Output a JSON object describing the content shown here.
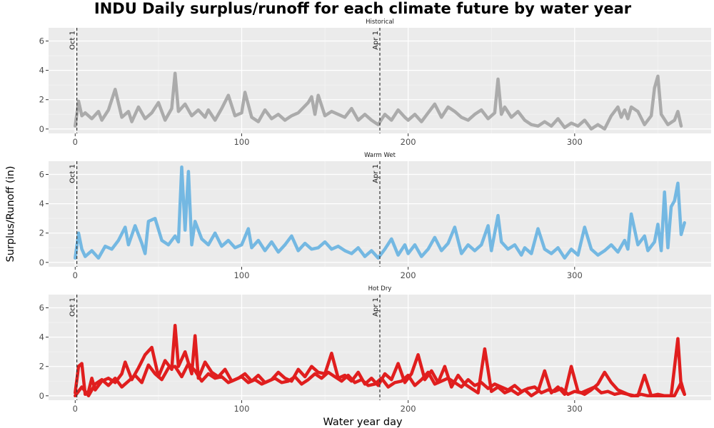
{
  "chart_data": {
    "type": "line",
    "title": "INDU Daily surplus/runoff for each climate future by water year",
    "xlabel": "Water year day",
    "ylabel": "Surplus/Runoff (in)",
    "xlim": [
      -16,
      382
    ],
    "ylim": [
      -0.3,
      6.9
    ],
    "x_ticks": [
      0,
      100,
      200,
      300
    ],
    "y_ticks": [
      0,
      2,
      4,
      6
    ],
    "grid": true,
    "legend": "none",
    "reference_lines": [
      {
        "x": 1,
        "label": "Oct 1"
      },
      {
        "x": 183,
        "label": "Apr 1"
      }
    ],
    "panels": [
      {
        "name": "Historical",
        "color": "#ABABAB",
        "series": [
          {
            "x": [
              0,
              2,
              4,
              6,
              10,
              14,
              16,
              20,
              24,
              28,
              32,
              34,
              38,
              42,
              46,
              50,
              54,
              58,
              60,
              62,
              66,
              70,
              74,
              78,
              80,
              84,
              88,
              92,
              96,
              100,
              102,
              106,
              110,
              114,
              118,
              122,
              126,
              130,
              134,
              140,
              142,
              144,
              146,
              150,
              154,
              158,
              162,
              166,
              170,
              174,
              178,
              182,
              186,
              190,
              194,
              198,
              200,
              204,
              208,
              212,
              216,
              220,
              224,
              228,
              232,
              236,
              240,
              244,
              248,
              252,
              254,
              256,
              258,
              262,
              266,
              270,
              274,
              278,
              282,
              286,
              290,
              294,
              298,
              302,
              306,
              310,
              314,
              318,
              322,
              326,
              328,
              330,
              332,
              334,
              338,
              342,
              346,
              348,
              350,
              352,
              356,
              360,
              362,
              364
            ],
            "y": [
              0.2,
              1.9,
              0.9,
              1.1,
              0.7,
              1.2,
              0.6,
              1.3,
              2.7,
              0.8,
              1.2,
              0.5,
              1.5,
              0.7,
              1.1,
              1.8,
              0.6,
              1.4,
              3.8,
              1.2,
              1.7,
              0.9,
              1.3,
              0.8,
              1.3,
              0.6,
              1.4,
              2.3,
              0.9,
              1.1,
              2.5,
              0.8,
              0.5,
              1.3,
              0.7,
              1.0,
              0.6,
              0.9,
              1.1,
              1.8,
              2.2,
              1.0,
              2.3,
              0.9,
              1.2,
              1.0,
              0.8,
              1.4,
              0.6,
              1.0,
              0.6,
              0.3,
              1.0,
              0.6,
              1.3,
              0.8,
              0.6,
              1.0,
              0.5,
              1.1,
              1.7,
              0.8,
              1.5,
              1.2,
              0.8,
              0.6,
              1.0,
              1.3,
              0.7,
              1.1,
              3.4,
              1.0,
              1.5,
              0.8,
              1.2,
              0.6,
              0.3,
              0.2,
              0.5,
              0.2,
              0.7,
              0.1,
              0.4,
              0.2,
              0.6,
              0.0,
              0.3,
              0.0,
              0.9,
              1.5,
              0.8,
              1.3,
              0.7,
              1.5,
              1.2,
              0.3,
              0.9,
              2.8,
              3.6,
              1.0,
              0.3,
              0.6,
              1.2,
              0.2
            ]
          }
        ]
      },
      {
        "name": "Warm Wet",
        "color": "#74B8E2",
        "series": [
          {
            "x": [
              0,
              2,
              4,
              6,
              10,
              14,
              18,
              22,
              26,
              30,
              32,
              36,
              40,
              42,
              44,
              48,
              52,
              56,
              60,
              62,
              64,
              66,
              68,
              70,
              72,
              76,
              80,
              84,
              88,
              92,
              96,
              100,
              104,
              106,
              110,
              114,
              118,
              122,
              126,
              130,
              134,
              138,
              142,
              146,
              150,
              154,
              158,
              162,
              166,
              170,
              174,
              178,
              182,
              186,
              190,
              194,
              198,
              200,
              204,
              208,
              212,
              216,
              220,
              224,
              228,
              232,
              236,
              240,
              244,
              248,
              250,
              254,
              256,
              260,
              264,
              268,
              270,
              274,
              278,
              282,
              286,
              290,
              294,
              298,
              302,
              306,
              310,
              314,
              318,
              322,
              326,
              330,
              332,
              334,
              338,
              342,
              344,
              348,
              350,
              352,
              354,
              356,
              358,
              360,
              362,
              364,
              366
            ],
            "y": [
              0.3,
              2.0,
              0.9,
              0.4,
              0.8,
              0.3,
              1.1,
              0.9,
              1.5,
              2.4,
              1.2,
              2.5,
              1.3,
              0.6,
              2.8,
              3.0,
              1.5,
              1.2,
              1.8,
              1.4,
              6.5,
              2.2,
              6.2,
              1.2,
              2.8,
              1.6,
              1.2,
              2.0,
              1.1,
              1.5,
              1.0,
              1.2,
              2.3,
              1.0,
              1.5,
              0.8,
              1.4,
              0.7,
              1.2,
              1.8,
              0.8,
              1.3,
              0.9,
              1.0,
              1.4,
              0.9,
              1.1,
              0.8,
              0.6,
              1.0,
              0.4,
              0.8,
              0.3,
              0.9,
              1.6,
              0.5,
              1.2,
              0.6,
              1.2,
              0.4,
              0.9,
              1.7,
              0.8,
              1.3,
              2.4,
              0.6,
              1.2,
              0.8,
              1.2,
              2.5,
              0.8,
              3.2,
              1.4,
              0.9,
              1.2,
              0.5,
              1.0,
              0.6,
              2.3,
              0.9,
              0.6,
              1.0,
              0.3,
              0.9,
              0.5,
              2.4,
              0.9,
              0.5,
              0.8,
              1.2,
              0.7,
              1.5,
              0.9,
              3.3,
              1.2,
              1.8,
              0.8,
              1.4,
              2.6,
              0.8,
              4.8,
              1.0,
              3.8,
              4.2,
              5.4,
              1.9,
              2.7
            ]
          }
        ]
      },
      {
        "name": "Hot Dry",
        "color": "#E01E1E",
        "series": [
          {
            "x": [
              0,
              2,
              4,
              6,
              8,
              10,
              12,
              16,
              20,
              24,
              28,
              30,
              34,
              38,
              42,
              46,
              50,
              54,
              58,
              60,
              62,
              66,
              70,
              72,
              74,
              78,
              82,
              86,
              90,
              94,
              98,
              102,
              106,
              110,
              114,
              118,
              122,
              126,
              130,
              134,
              138,
              142,
              146,
              150,
              154,
              158,
              162,
              166,
              170,
              174,
              178,
              182,
              186,
              190,
              194,
              198,
              202,
              206,
              210,
              214,
              218,
              222,
              226,
              230,
              234,
              238,
              242,
              246,
              250,
              254,
              258,
              262,
              266,
              270,
              274,
              278,
              282,
              286,
              290,
              294,
              298,
              302,
              306,
              310,
              314,
              318,
              322,
              326,
              330,
              334,
              338,
              342,
              346,
              350,
              354,
              358,
              362,
              364,
              366
            ],
            "y": [
              0.2,
              2.0,
              2.2,
              0.1,
              0.3,
              1.2,
              0.4,
              1.0,
              1.2,
              0.9,
              1.5,
              2.3,
              1.1,
              1.9,
              2.8,
              3.3,
              1.3,
              2.4,
              1.8,
              4.8,
              2.0,
              3.0,
              1.5,
              4.1,
              1.2,
              2.3,
              1.6,
              1.3,
              1.8,
              1.0,
              1.2,
              1.5,
              1.0,
              1.4,
              0.9,
              1.1,
              1.6,
              1.2,
              1.0,
              1.8,
              1.3,
              2.0,
              1.6,
              1.5,
              2.9,
              1.2,
              1.4,
              1.0,
              1.6,
              0.8,
              1.2,
              0.7,
              1.5,
              1.1,
              2.2,
              0.9,
              1.5,
              2.8,
              1.1,
              1.7,
              0.9,
              2.0,
              0.6,
              1.4,
              0.8,
              0.5,
              0.2,
              3.2,
              0.3,
              0.6,
              0.2,
              0.4,
              0.1,
              0.4,
              0.0,
              0.3,
              1.7,
              0.2,
              0.6,
              0.1,
              2.0,
              0.3,
              0.1,
              0.4,
              0.8,
              1.6,
              0.9,
              0.4,
              0.2,
              0.0,
              0.0,
              1.4,
              0.0,
              0.1,
              0.0,
              0.0,
              3.9,
              0.6,
              0.1
            ]
          },
          {
            "x": [
              0,
              4,
              8,
              12,
              16,
              20,
              24,
              28,
              32,
              36,
              40,
              44,
              48,
              52,
              56,
              60,
              64,
              68,
              72,
              76,
              80,
              84,
              88,
              92,
              96,
              100,
              104,
              108,
              112,
              116,
              120,
              124,
              128,
              132,
              136,
              140,
              144,
              148,
              152,
              156,
              160,
              164,
              168,
              172,
              176,
              180,
              184,
              188,
              192,
              196,
              200,
              204,
              208,
              212,
              216,
              220,
              224,
              228,
              232,
              236,
              240,
              244,
              248,
              252,
              256,
              260,
              264,
              268,
              272,
              276,
              280,
              284,
              288,
              292,
              296,
              300,
              304,
              308,
              312,
              316,
              320,
              324,
              328,
              332,
              336,
              340,
              344,
              348,
              352,
              356,
              360,
              364,
              366
            ],
            "y": [
              0.0,
              0.6,
              0.0,
              0.8,
              1.1,
              0.7,
              1.2,
              0.6,
              1.0,
              1.4,
              0.9,
              2.1,
              1.5,
              1.1,
              1.9,
              2.0,
              1.3,
              2.2,
              1.7,
              1.0,
              1.5,
              1.2,
              1.3,
              0.9,
              1.1,
              1.3,
              0.9,
              1.1,
              0.8,
              1.0,
              1.2,
              0.9,
              1.0,
              1.3,
              0.8,
              1.1,
              1.5,
              1.2,
              1.6,
              1.3,
              1.0,
              1.4,
              0.9,
              1.1,
              0.7,
              0.8,
              1.2,
              0.6,
              0.9,
              1.0,
              1.4,
              0.7,
              1.1,
              1.6,
              0.8,
              1.0,
              1.2,
              0.9,
              0.6,
              1.1,
              0.7,
              0.9,
              0.5,
              0.8,
              0.6,
              0.4,
              0.7,
              0.3,
              0.5,
              0.6,
              0.2,
              0.4,
              0.3,
              0.5,
              0.1,
              0.3,
              0.2,
              0.4,
              0.6,
              0.2,
              0.3,
              0.1,
              0.2,
              0.1,
              0.0,
              0.1,
              0.0,
              0.0,
              0.0,
              0.0,
              0.0,
              0.9,
              0.1
            ]
          }
        ]
      }
    ]
  }
}
